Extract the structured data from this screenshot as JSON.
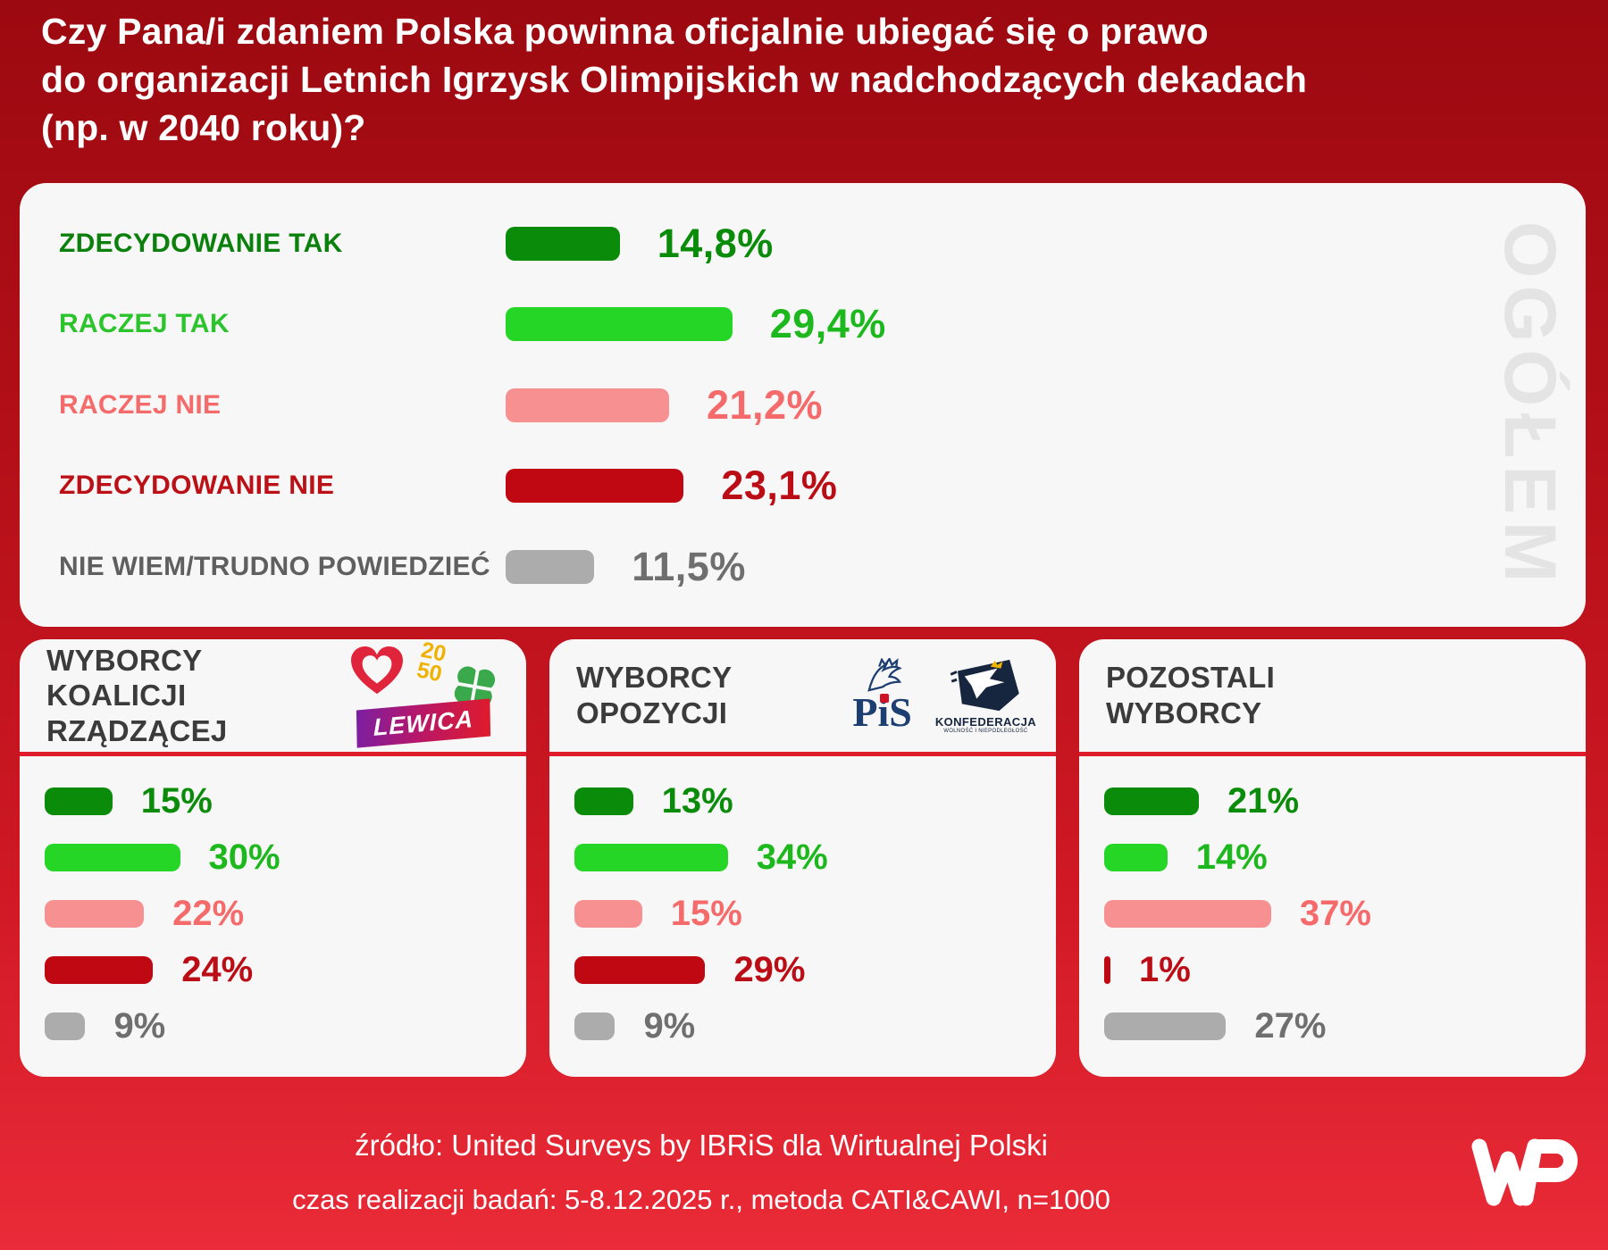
{
  "title": "Czy Pana/i zdaniem Polska powinna oficjalnie ubiegać się o prawo\ndo organizacji Letnich Igrzysk Olimpijskich w nadchodzących dekadach\n(np. w 2040 roku)?",
  "main_chart": {
    "watermark": "OGÓŁEM",
    "rows": [
      {
        "label": "ZDECYDOWANIE TAK",
        "display": "14,8%"
      },
      {
        "label": "RACZEJ TAK",
        "display": "29,4%"
      },
      {
        "label": "RACZEJ NIE",
        "display": "21,2%"
      },
      {
        "label": "ZDECYDOWANIE NIE",
        "display": "23,1%"
      },
      {
        "label": "NIE WIEM/TRUDNO POWIEDZIEĆ",
        "display": "11,5%"
      }
    ]
  },
  "panels": [
    {
      "title": "WYBORCY\nKOALICJI RZĄDZĄCEJ",
      "logos": "coalition",
      "rows": [
        {
          "display": "15%"
        },
        {
          "display": "30%"
        },
        {
          "display": "22%"
        },
        {
          "display": "24%"
        },
        {
          "display": "9%"
        }
      ]
    },
    {
      "title": "WYBORCY\nOPOZYCJI",
      "logos": "opposition",
      "rows": [
        {
          "display": "13%"
        },
        {
          "display": "34%"
        },
        {
          "display": "15%"
        },
        {
          "display": "29%"
        },
        {
          "display": "9%"
        }
      ]
    },
    {
      "title": "POZOSTALI\nWYBORCY",
      "logos": "none",
      "rows": [
        {
          "display": "21%"
        },
        {
          "display": "14%"
        },
        {
          "display": "37%"
        },
        {
          "display": "1%"
        },
        {
          "display": "27%"
        }
      ]
    }
  ],
  "logos": {
    "p2050_line1": "20",
    "p2050_line2": "50",
    "lewica_text": "LEWICA",
    "pis_text": "PiS",
    "konfederacja_text": "KONFEDERACJA",
    "konfederacja_sub": "WOLNOŚĆ I NIEPODLEGŁOŚĆ"
  },
  "footer": {
    "source": "źródło: United Surveys by IBRiS dla Wirtualnej Polski",
    "details": "czas realizacji badań: 5-8.12.2025 r., metoda CATI&CAWI, n=1000"
  },
  "colors": {
    "bar": [
      "#0a8c0a",
      "#26d626",
      "#f79191",
      "#c00812",
      "#acacac"
    ],
    "value": [
      "#0a8c0a",
      "#1db81d",
      "#f56b6b",
      "#bb0d16",
      "#6f6f6f"
    ],
    "label": [
      "#0c800c",
      "#2cc42c",
      "#f46b6b",
      "#bb1016",
      "#5f5f5f"
    ],
    "background_top": "#9c0910",
    "background_bottom": "#ea2b38",
    "panel_bg": "#f8f7f7",
    "divider_red": "#e01b2b"
  },
  "chart_data": {
    "type": "bar",
    "orientation": "horizontal",
    "unit": "%",
    "title": "Czy Pana/i zdaniem Polska powinna oficjalnie ubiegać się o prawo do organizacji Letnich Igrzysk Olimpijskich w nadchodzących dekadach (np. w 2040 roku)?",
    "categories": [
      "ZDECYDOWANIE TAK",
      "RACZEJ TAK",
      "RACZEJ NIE",
      "ZDECYDOWANIE NIE",
      "NIE WIEM/TRUDNO POWIEDZIEĆ"
    ],
    "series": [
      {
        "name": "OGÓŁEM",
        "values": [
          14.8,
          29.4,
          21.2,
          23.1,
          11.5
        ]
      },
      {
        "name": "WYBORCY KOALICJI RZĄDZĄCEJ",
        "values": [
          15,
          30,
          22,
          24,
          9
        ]
      },
      {
        "name": "WYBORCY OPOZYCJI",
        "values": [
          13,
          34,
          15,
          29,
          9
        ]
      },
      {
        "name": "POZOSTALI WYBORCY",
        "values": [
          21,
          14,
          37,
          1,
          27
        ]
      }
    ],
    "legend_position": "none",
    "grid": false,
    "source_note": "źródło: United Surveys by IBRiS dla Wirtualnej Polski",
    "method_note": "czas realizacji badań: 5-8.12.2025 r., metoda CATI&CAWI, n=1000"
  }
}
